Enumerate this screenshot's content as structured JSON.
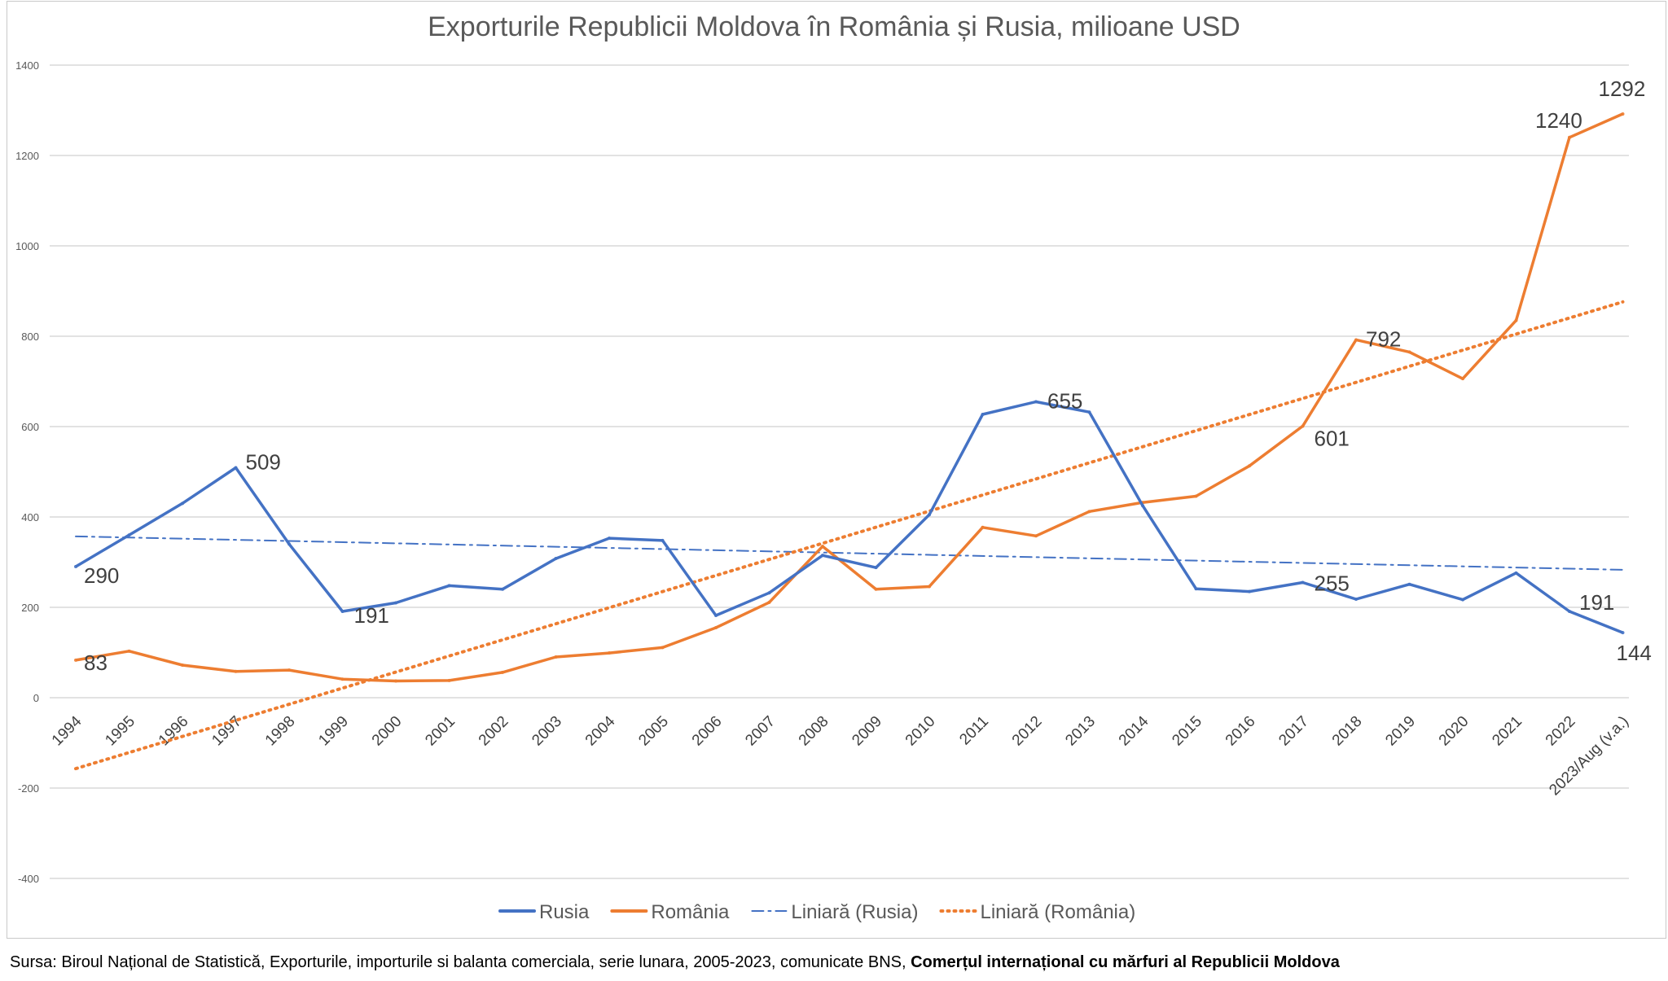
{
  "chart_data": {
    "type": "line",
    "title": "Exporturile Republicii Moldova în România și Rusia, milioane USD",
    "categories": [
      "1994",
      "1995",
      "1996",
      "1997",
      "1998",
      "1999",
      "2000",
      "2001",
      "2002",
      "2003",
      "2004",
      "2005",
      "2006",
      "2007",
      "2008",
      "2009",
      "2010",
      "2011",
      "2012",
      "2013",
      "2014",
      "2015",
      "2016",
      "2017",
      "2018",
      "2019",
      "2020",
      "2021",
      "2022",
      "2023/Aug (v.a.)"
    ],
    "ylim": [
      -400,
      1400
    ],
    "yticks": [
      -400,
      -200,
      0,
      200,
      400,
      600,
      800,
      1000,
      1200,
      1400
    ],
    "grid": true,
    "legend_position": "bottom",
    "series": [
      {
        "name": "Rusia",
        "color": "#4472c4",
        "style": "solid",
        "values": [
          290,
          360,
          430,
          509,
          340,
          191,
          210,
          248,
          240,
          308,
          353,
          348,
          182,
          232,
          315,
          288,
          405,
          627,
          655,
          632,
          425,
          241,
          235,
          255,
          218,
          251,
          217,
          276,
          191,
          144
        ]
      },
      {
        "name": "România",
        "color": "#ed7d31",
        "style": "solid",
        "values": [
          83,
          103,
          72,
          58,
          61,
          41,
          37,
          38,
          56,
          90,
          99,
          111,
          155,
          211,
          335,
          240,
          246,
          377,
          358,
          412,
          432,
          446,
          513,
          601,
          792,
          765,
          706,
          835,
          1240,
          1292
        ]
      },
      {
        "name": "Liniară (Rusia)",
        "color": "#4472c4",
        "style": "dashdot",
        "trend": [
          357,
          283
        ]
      },
      {
        "name": "Liniară (România)",
        "color": "#ed7d31",
        "style": "dotted",
        "trend": [
          -157,
          876
        ]
      }
    ],
    "annotations": [
      {
        "series": 0,
        "index": 0,
        "text": "290"
      },
      {
        "series": 0,
        "index": 3,
        "text": "509"
      },
      {
        "series": 0,
        "index": 5,
        "text": "191"
      },
      {
        "series": 0,
        "index": 18,
        "text": "655"
      },
      {
        "series": 0,
        "index": 23,
        "text": "255"
      },
      {
        "series": 0,
        "index": 28,
        "text": "191"
      },
      {
        "series": 0,
        "index": 29,
        "text": "144"
      },
      {
        "series": 1,
        "index": 0,
        "text": "83"
      },
      {
        "series": 1,
        "index": 23,
        "text": "601"
      },
      {
        "series": 1,
        "index": 24,
        "text": "792"
      },
      {
        "series": 1,
        "index": 28,
        "text": "1240"
      },
      {
        "series": 1,
        "index": 29,
        "text": "1292"
      }
    ]
  },
  "source": {
    "prefix": "Sursa: Biroul Național de Statistică, Exporturile, importurile si balanta comerciala, serie lunara, 2005-2023, comunicate BNS, ",
    "bold": "Comerțul internațional cu mărfuri al Republicii Moldova"
  }
}
